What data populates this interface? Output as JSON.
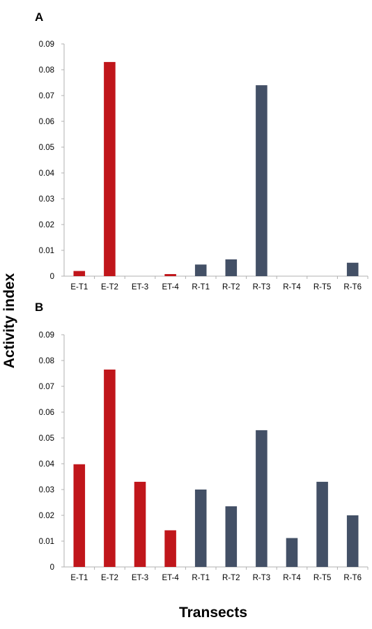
{
  "figure": {
    "ylabel": "Activity index",
    "xlabel": "Transects"
  },
  "colors": {
    "E": "#c0161b",
    "R": "#435066",
    "axis": "#b0b0b0"
  },
  "chart_data": [
    {
      "panel": "A",
      "type": "bar",
      "categories": [
        "E-T1",
        "E-T2",
        "ET-3",
        "ET-4",
        "R-T1",
        "R-T2",
        "R-T3",
        "R-T4",
        "R-T5",
        "R-T6"
      ],
      "values": [
        0.002,
        0.083,
        0,
        0.0008,
        0.0045,
        0.0065,
        0.074,
        0,
        0,
        0.0052
      ],
      "groups": [
        "E",
        "E",
        "E",
        "E",
        "R",
        "R",
        "R",
        "R",
        "R",
        "R"
      ],
      "ylim": [
        0,
        0.09
      ],
      "yticks": [
        "0",
        "0.01",
        "0.02",
        "0.03",
        "0.04",
        "0.05",
        "0.06",
        "0.07",
        "0.08",
        "0.09"
      ],
      "grid": false
    },
    {
      "panel": "B",
      "type": "bar",
      "categories": [
        "E-T1",
        "E-T2",
        "ET-3",
        "ET-4",
        "R-T1",
        "R-T2",
        "R-T3",
        "R-T4",
        "R-T5",
        "R-T6"
      ],
      "values": [
        0.0398,
        0.0765,
        0.033,
        0.0142,
        0.03,
        0.0235,
        0.053,
        0.0112,
        0.033,
        0.02
      ],
      "groups": [
        "E",
        "E",
        "E",
        "E",
        "R",
        "R",
        "R",
        "R",
        "R",
        "R"
      ],
      "ylim": [
        0,
        0.09
      ],
      "yticks": [
        "0",
        "0.01",
        "0.02",
        "0.03",
        "0.04",
        "0.05",
        "0.06",
        "0.07",
        "0.08",
        "0.09"
      ],
      "grid": false
    }
  ]
}
